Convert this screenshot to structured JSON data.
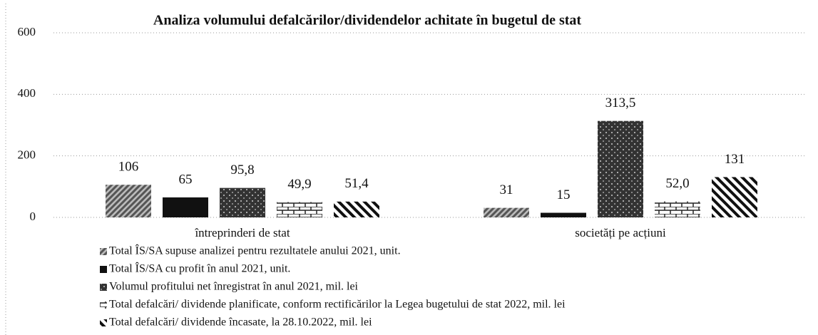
{
  "chart_data": {
    "type": "bar",
    "title": "Analiza volumului defalcărilor/dividendelor achitate în bugetul de stat",
    "categories": [
      "întreprinderi de stat",
      "societăți pe acțiuni"
    ],
    "series": [
      {
        "name": "Total ÎS/SA supuse analizei pentru rezultatele anului 2021, unit.",
        "color": "#555555",
        "values": [
          106,
          31
        ]
      },
      {
        "name": "Total ÎS/SA cu profit în anul 2021, unit.",
        "color": "#111111",
        "values": [
          65,
          15
        ]
      },
      {
        "name": "Volumul profitului net înregistrat în anul 2021, mil. lei",
        "color": "#333333",
        "values": [
          95.8,
          313.5
        ],
        "value_labels": [
          "95,8",
          "313,5"
        ]
      },
      {
        "name": "Total defalcări/ dividende planificate, conform rectificărilor la Legea bugetului de stat 2022, mil. lei",
        "color": "#222222",
        "values": [
          49.9,
          52.0
        ],
        "value_labels": [
          "49,9",
          "52,0"
        ]
      },
      {
        "name": "Total defalcări/ dividende încasate, la 28.10.2022, mil. lei",
        "color": "#111111",
        "values": [
          51.4,
          131
        ],
        "value_labels": [
          "51,4",
          "131"
        ]
      }
    ],
    "ylim": [
      0,
      600
    ],
    "yticks": [
      0,
      200,
      400,
      600
    ],
    "grid": true
  }
}
